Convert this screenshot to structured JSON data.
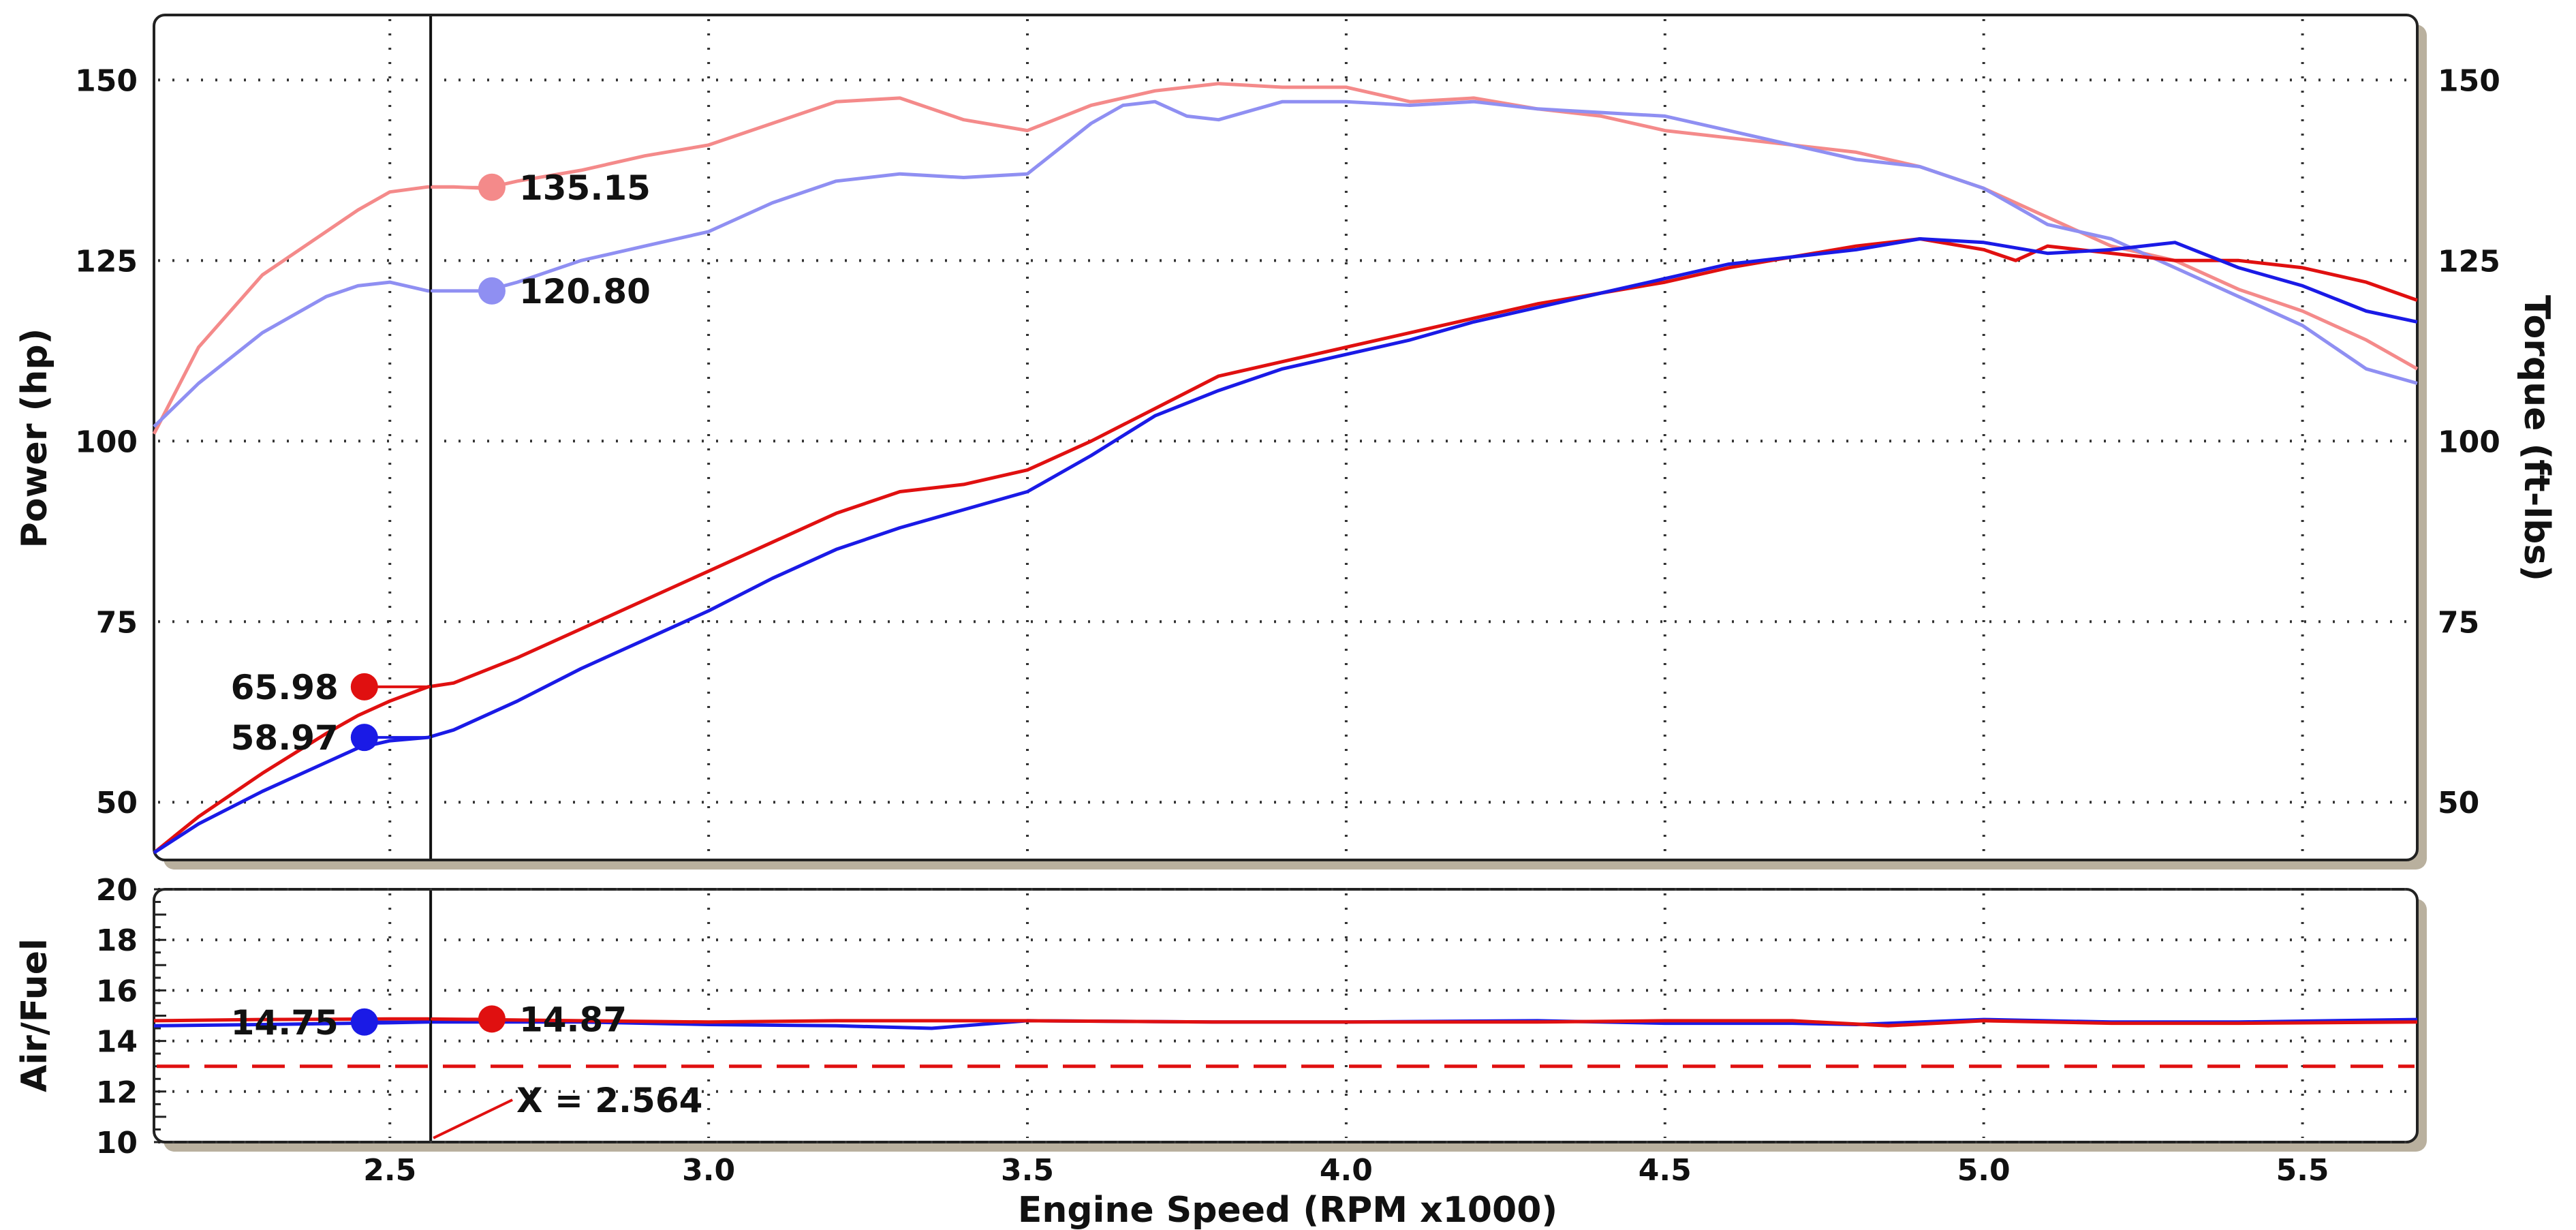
{
  "chart_data": [
    {
      "type": "line",
      "panel": "power-torque",
      "xlabel": "Engine Speed (RPM x1000)",
      "ylabel": "Power (hp)",
      "y2label": "Torque (ft-lbs)",
      "xlim": [
        2.13,
        5.68
      ],
      "ylim": [
        42,
        159
      ],
      "y2lim": [
        42,
        159
      ],
      "x_ticks": [
        "2.5",
        "3.0",
        "3.5",
        "4.0",
        "4.5",
        "5.0",
        "5.5"
      ],
      "y_ticks": [
        "50",
        "75",
        "100",
        "125",
        "150"
      ],
      "y2_ticks": [
        "50",
        "75",
        "100",
        "125",
        "150"
      ],
      "grid": true,
      "colors": {
        "power_red": "#e01010",
        "power_blue": "#1a1ae6",
        "torque_red": "#f48a8a",
        "torque_blue": "#8f8ff2"
      },
      "series": [
        {
          "key": "torque_red",
          "axis": "right",
          "x": [
            2.13,
            2.2,
            2.3,
            2.35,
            2.4,
            2.45,
            2.5,
            2.56,
            2.6,
            2.65,
            2.7,
            2.8,
            2.9,
            3.0,
            3.1,
            3.2,
            3.3,
            3.4,
            3.5,
            3.6,
            3.7,
            3.8,
            3.9,
            4.0,
            4.1,
            4.2,
            4.3,
            4.4,
            4.5,
            4.6,
            4.7,
            4.8,
            4.9,
            5.0,
            5.1,
            5.2,
            5.3,
            5.4,
            5.5,
            5.6,
            5.68
          ],
          "values": [
            101,
            113,
            123,
            126,
            129,
            132,
            134.5,
            135.2,
            135.2,
            135,
            136,
            137.5,
            139.5,
            141,
            144,
            147,
            147.5,
            144.5,
            143,
            146.5,
            148.5,
            149.5,
            149,
            149,
            147,
            147.5,
            146,
            145,
            143,
            142,
            141,
            140,
            138,
            135,
            131,
            127,
            125,
            121,
            118,
            114,
            110
          ]
        },
        {
          "key": "torque_blue",
          "axis": "right",
          "x": [
            2.13,
            2.2,
            2.3,
            2.4,
            2.45,
            2.5,
            2.56,
            2.6,
            2.65,
            2.7,
            2.8,
            2.9,
            3.0,
            3.1,
            3.2,
            3.3,
            3.4,
            3.5,
            3.6,
            3.65,
            3.7,
            3.75,
            3.8,
            3.9,
            4.0,
            4.1,
            4.2,
            4.3,
            4.4,
            4.5,
            4.6,
            4.7,
            4.8,
            4.9,
            5.0,
            5.1,
            5.2,
            5.3,
            5.4,
            5.5,
            5.6,
            5.68
          ],
          "values": [
            102,
            108,
            115,
            120,
            121.5,
            122,
            120.8,
            120.8,
            120.8,
            122,
            125,
            127,
            129,
            133,
            136,
            137,
            136.5,
            137,
            144,
            146.5,
            147,
            145,
            144.5,
            147,
            147,
            146.5,
            147,
            146,
            145.5,
            145,
            143,
            141,
            139,
            138,
            135,
            130,
            128,
            124,
            120,
            116,
            110,
            108
          ]
        },
        {
          "key": "power_red",
          "axis": "left",
          "x": [
            2.13,
            2.2,
            2.3,
            2.4,
            2.45,
            2.5,
            2.56,
            2.6,
            2.7,
            2.8,
            2.9,
            3.0,
            3.1,
            3.2,
            3.3,
            3.4,
            3.5,
            3.6,
            3.7,
            3.8,
            3.9,
            4.0,
            4.1,
            4.2,
            4.3,
            4.4,
            4.5,
            4.6,
            4.7,
            4.8,
            4.9,
            5.0,
            5.05,
            5.1,
            5.2,
            5.3,
            5.4,
            5.5,
            5.6,
            5.68
          ],
          "values": [
            43,
            48,
            54,
            59.5,
            62,
            64,
            65.98,
            66.5,
            70,
            74,
            78,
            82,
            86,
            90,
            93,
            94,
            96,
            100,
            104.5,
            109,
            111,
            113,
            115,
            117,
            119,
            120.5,
            122,
            124,
            125.5,
            127,
            128,
            126.5,
            125,
            127,
            126,
            125,
            125,
            124,
            122,
            119.5
          ]
        },
        {
          "key": "power_blue",
          "axis": "left",
          "x": [
            2.13,
            2.2,
            2.3,
            2.4,
            2.45,
            2.5,
            2.56,
            2.6,
            2.7,
            2.8,
            2.9,
            3.0,
            3.1,
            3.2,
            3.3,
            3.4,
            3.5,
            3.6,
            3.7,
            3.8,
            3.9,
            4.0,
            4.1,
            4.2,
            4.3,
            4.4,
            4.5,
            4.6,
            4.7,
            4.8,
            4.9,
            5.0,
            5.1,
            5.2,
            5.3,
            5.4,
            5.5,
            5.6,
            5.68
          ],
          "values": [
            43,
            47,
            51.5,
            55.5,
            57.5,
            58.5,
            58.97,
            60,
            64,
            68.5,
            72.5,
            76.5,
            81,
            85,
            88,
            90.5,
            93,
            98,
            103.5,
            107,
            110,
            112,
            114,
            116.5,
            118.5,
            120.5,
            122.5,
            124.5,
            125.5,
            126.5,
            128,
            127.5,
            126,
            126.5,
            127.5,
            124,
            121.5,
            118,
            116.5
          ]
        }
      ],
      "markers": [
        {
          "series": "torque_red",
          "label": "135.15",
          "x": 2.66,
          "y": 135.15
        },
        {
          "series": "torque_blue",
          "label": "120.80",
          "x": 2.66,
          "y": 120.8
        },
        {
          "series": "power_red",
          "label": "65.98",
          "x": 2.46,
          "y": 65.98
        },
        {
          "series": "power_blue",
          "label": "58.97",
          "x": 2.46,
          "y": 58.97
        }
      ]
    },
    {
      "type": "line",
      "panel": "air-fuel",
      "xlabel": "Engine Speed (RPM x1000)",
      "ylabel": "Air/Fuel",
      "xlim": [
        2.13,
        5.68
      ],
      "ylim": [
        10,
        20
      ],
      "y_ticks": [
        "10",
        "12",
        "14",
        "16",
        "18",
        "20"
      ],
      "grid": true,
      "reference_line": {
        "y": 13,
        "color": "#e01010",
        "style": "dashed"
      },
      "series": [
        {
          "key": "afr_blue",
          "x": [
            2.13,
            2.3,
            2.5,
            2.56,
            2.8,
            3.0,
            3.2,
            3.35,
            3.5,
            3.8,
            4.0,
            4.3,
            4.5,
            4.7,
            4.8,
            5.0,
            5.2,
            5.4,
            5.68
          ],
          "values": [
            14.6,
            14.65,
            14.72,
            14.75,
            14.75,
            14.65,
            14.6,
            14.5,
            14.8,
            14.75,
            14.75,
            14.8,
            14.7,
            14.7,
            14.65,
            14.85,
            14.75,
            14.75,
            14.85
          ]
        },
        {
          "key": "afr_red",
          "x": [
            2.13,
            2.3,
            2.5,
            2.56,
            2.8,
            3.0,
            3.2,
            3.5,
            3.8,
            4.0,
            4.3,
            4.5,
            4.7,
            4.85,
            5.0,
            5.2,
            5.4,
            5.68
          ],
          "values": [
            14.8,
            14.85,
            14.87,
            14.87,
            14.8,
            14.75,
            14.8,
            14.8,
            14.75,
            14.75,
            14.75,
            14.8,
            14.8,
            14.6,
            14.8,
            14.7,
            14.7,
            14.75
          ]
        }
      ],
      "markers": [
        {
          "series": "afr_red",
          "label": "14.87",
          "x": 2.66,
          "y": 14.87
        },
        {
          "series": "afr_blue",
          "label": "14.75",
          "x": 2.46,
          "y": 14.75
        }
      ]
    }
  ],
  "cursor": {
    "x": 2.564,
    "label": "X = 2.564"
  }
}
